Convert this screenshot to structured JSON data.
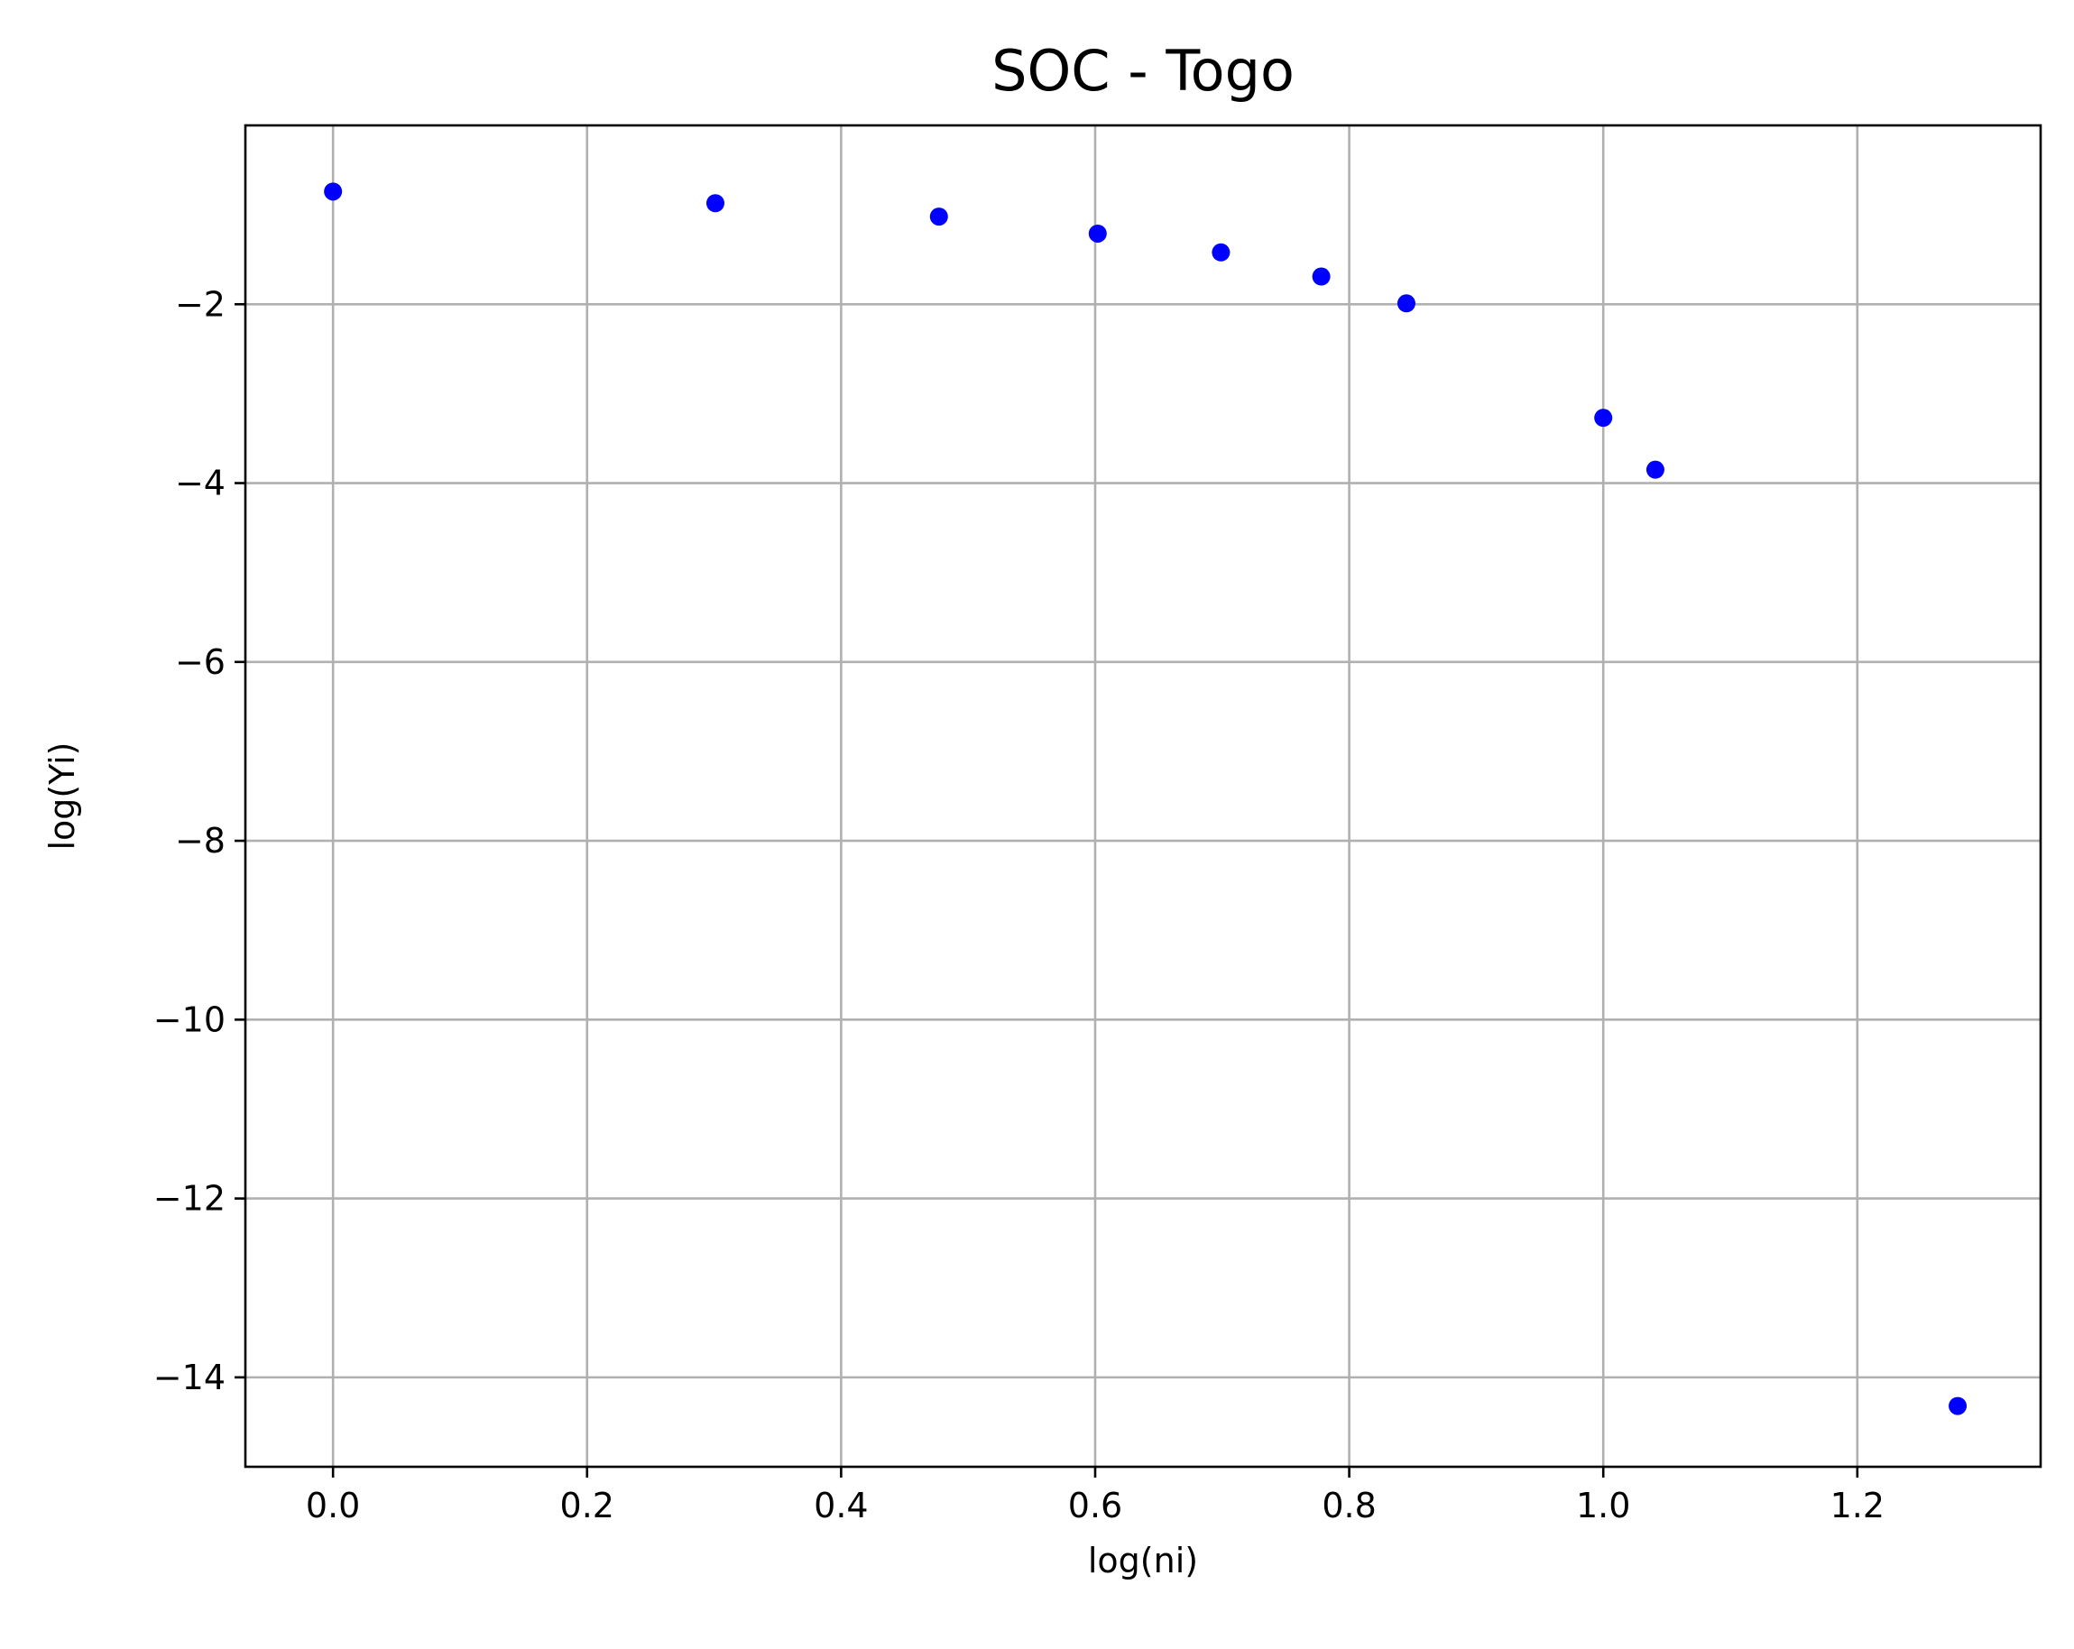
{
  "chart_data": {
    "type": "scatter",
    "title": "SOC - Togo",
    "xlabel": "log(ni)",
    "ylabel": "log(Yi)",
    "xlim": [
      -0.069,
      1.3443
    ],
    "ylim": [
      -15.0,
      -0.0
    ],
    "x_ticks": [
      0.0,
      0.2,
      0.4,
      0.6,
      0.8,
      1.0,
      1.2
    ],
    "x_tick_labels": [
      "0.0",
      "0.2",
      "0.4",
      "0.6",
      "0.8",
      "1.0",
      "1.2"
    ],
    "y_ticks": [
      -2,
      -4,
      -6,
      -8,
      -10,
      -12,
      -14
    ],
    "y_tick_labels": [
      "−2",
      "−4",
      "−6",
      "−8",
      "−10",
      "−12",
      "−14"
    ],
    "grid": true,
    "marker_color": "#0000ff",
    "series": [
      {
        "x": [
          0.0,
          0.301,
          0.477,
          0.602,
          0.699,
          0.778,
          0.845,
          1.0,
          1.041,
          1.279
        ],
        "y": [
          -0.74,
          -0.87,
          -1.02,
          -1.21,
          -1.42,
          -1.69,
          -1.99,
          -3.27,
          -3.85,
          -14.32
        ]
      }
    ]
  }
}
